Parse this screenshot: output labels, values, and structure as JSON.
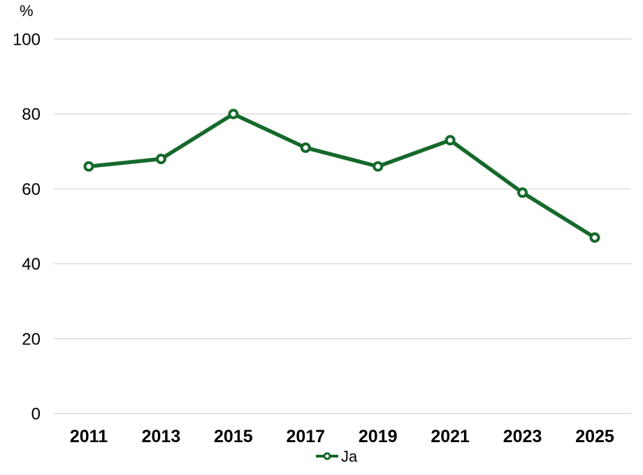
{
  "chart_data": {
    "type": "line",
    "ylabel": "%",
    "categories": [
      "2011",
      "2013",
      "2015",
      "2017",
      "2019",
      "2021",
      "2023",
      "2025"
    ],
    "series": [
      {
        "name": "Ja",
        "values": [
          66,
          68,
          80,
          71,
          66,
          73,
          59,
          47
        ],
        "color": "#15692b"
      }
    ],
    "ylim": [
      0,
      100
    ],
    "yticks": [
      0,
      20,
      40,
      60,
      80,
      100
    ],
    "grid": true,
    "legend_position": "bottom",
    "gridline_color": "#d9d9d9",
    "text_color": "#000000",
    "marker_fill": "#ffffff"
  }
}
